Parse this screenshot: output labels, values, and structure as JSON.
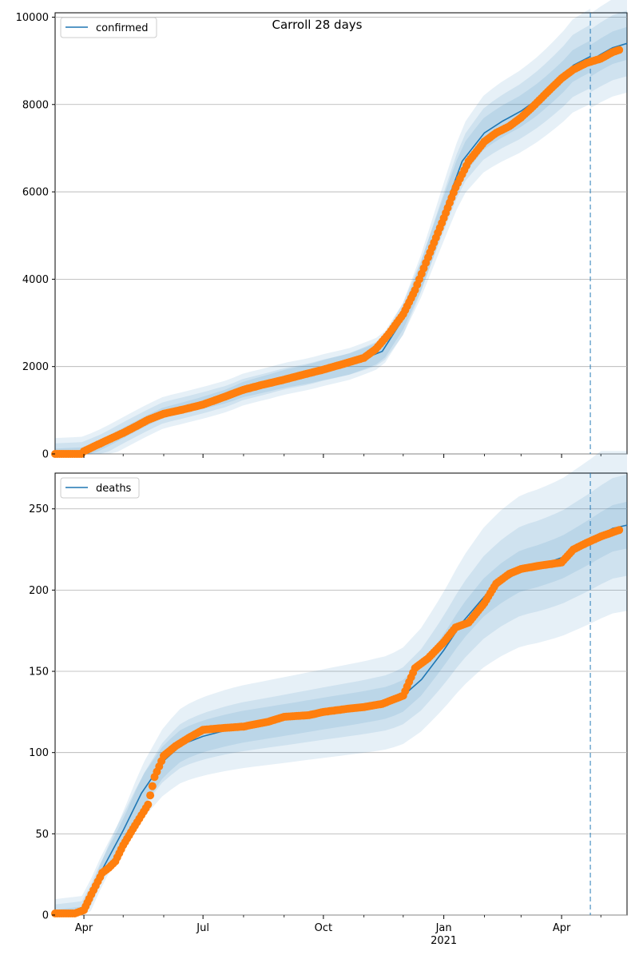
{
  "title": "Carroll 28 days",
  "colors": {
    "model_line": "#1f77b4",
    "observed": "#ff7f0e",
    "band": "#1f77b4",
    "grid": "#b0b0b0",
    "forecast_line": "#1f77b4"
  },
  "x_axis": {
    "start": "2020-03-10",
    "end": "2021-05-21",
    "major_ticks": [
      {
        "date": "2020-04-01",
        "label": "Apr",
        "sublabel": ""
      },
      {
        "date": "2020-07-01",
        "label": "Jul",
        "sublabel": ""
      },
      {
        "date": "2020-10-01",
        "label": "Oct",
        "sublabel": ""
      },
      {
        "date": "2021-01-01",
        "label": "Jan",
        "sublabel": "2021"
      },
      {
        "date": "2021-04-01",
        "label": "Apr",
        "sublabel": ""
      }
    ],
    "minor_ticks": [
      "2020-05-01",
      "2020-06-01",
      "2020-08-01",
      "2020-09-01",
      "2020-11-01",
      "2020-12-01",
      "2021-02-01",
      "2021-03-01",
      "2021-05-01"
    ],
    "forecast_start": "2021-04-23"
  },
  "chart_data": [
    {
      "type": "line",
      "legend": "confirmed",
      "legend_position": "upper-left",
      "grid": "horizontal",
      "ylim": [
        0,
        10100
      ],
      "yticks": [
        0,
        2000,
        4000,
        6000,
        8000,
        10000
      ],
      "model": {
        "x": [
          "2020-03-10",
          "2020-03-31",
          "2020-04-15",
          "2020-05-01",
          "2020-05-20",
          "2020-06-01",
          "2020-06-15",
          "2020-07-01",
          "2020-07-20",
          "2020-08-01",
          "2020-08-20",
          "2020-09-01",
          "2020-09-20",
          "2020-10-01",
          "2020-10-20",
          "2020-11-01",
          "2020-11-15",
          "2020-12-01",
          "2020-12-15",
          "2021-01-01",
          "2021-01-15",
          "2021-02-01",
          "2021-02-15",
          "2021-03-01",
          "2021-03-15",
          "2021-04-01",
          "2021-04-10",
          "2021-04-23"
        ],
        "y": [
          0,
          30,
          220,
          480,
          780,
          950,
          1050,
          1170,
          1330,
          1480,
          1620,
          1720,
          1830,
          1920,
          2050,
          2180,
          2350,
          3100,
          4100,
          5550,
          6700,
          7350,
          7620,
          7850,
          8150,
          8600,
          8900,
          9100
        ]
      },
      "forecast": {
        "x": [
          "2021-04-23",
          "2021-05-01",
          "2021-05-10",
          "2021-05-21"
        ],
        "y": [
          9000,
          9150,
          9300,
          9400
        ]
      },
      "band_scale": [
        0.04,
        0.08,
        0.12
      ],
      "observed": {
        "x": [
          "2020-03-10",
          "2020-03-20",
          "2020-03-30",
          "2020-04-01",
          "2020-04-10",
          "2020-04-20",
          "2020-05-01",
          "2020-05-10",
          "2020-05-20",
          "2020-06-01",
          "2020-06-15",
          "2020-07-01",
          "2020-07-15",
          "2020-08-01",
          "2020-08-15",
          "2020-09-01",
          "2020-09-15",
          "2020-10-01",
          "2020-10-15",
          "2020-11-01",
          "2020-11-10",
          "2020-11-20",
          "2020-12-01",
          "2020-12-10",
          "2020-12-20",
          "2021-01-01",
          "2021-01-10",
          "2021-01-20",
          "2021-02-01",
          "2021-02-10",
          "2021-02-20",
          "2021-03-01",
          "2021-03-10",
          "2021-03-20",
          "2021-04-01",
          "2021-04-10",
          "2021-04-20",
          "2021-05-01",
          "2021-05-10",
          "2021-05-15"
        ],
        "y": [
          0,
          0,
          0,
          60,
          190,
          330,
          480,
          620,
          780,
          920,
          1010,
          1130,
          1280,
          1470,
          1580,
          1700,
          1810,
          1930,
          2050,
          2200,
          2400,
          2750,
          3200,
          3750,
          4500,
          5400,
          6100,
          6700,
          7150,
          7350,
          7500,
          7700,
          7950,
          8250,
          8600,
          8800,
          8950,
          9050,
          9200,
          9250
        ]
      }
    },
    {
      "type": "line",
      "legend": "deaths",
      "legend_position": "upper-left",
      "grid": "horizontal",
      "ylim": [
        0,
        272
      ],
      "yticks": [
        0,
        50,
        100,
        150,
        200,
        250
      ],
      "model": {
        "x": [
          "2020-03-10",
          "2020-03-31",
          "2020-04-05",
          "2020-04-15",
          "2020-05-01",
          "2020-05-15",
          "2020-06-01",
          "2020-06-15",
          "2020-07-01",
          "2020-07-20",
          "2020-08-01",
          "2020-09-01",
          "2020-10-01",
          "2020-11-01",
          "2020-11-20",
          "2020-12-01",
          "2020-12-15",
          "2021-01-01",
          "2021-01-15",
          "2021-02-01",
          "2021-02-15",
          "2021-03-01",
          "2021-03-15",
          "2021-04-01",
          "2021-04-23"
        ],
        "y": [
          0,
          2,
          10,
          28,
          52,
          75,
          95,
          105,
          110,
          114,
          116,
          120,
          124,
          128,
          131,
          135,
          145,
          163,
          180,
          196,
          205,
          212,
          215,
          220,
          230
        ]
      },
      "forecast": {
        "x": [
          "2021-04-23",
          "2021-05-01",
          "2021-05-10",
          "2021-05-21"
        ],
        "y": [
          230,
          234,
          238,
          240
        ]
      },
      "band_scale": [
        0.06,
        0.13,
        0.22
      ],
      "observed": {
        "x": [
          "2020-03-10",
          "2020-03-25",
          "2020-04-01",
          "2020-04-05",
          "2020-04-10",
          "2020-04-15",
          "2020-04-20",
          "2020-04-25",
          "2020-05-01",
          "2020-05-10",
          "2020-05-20",
          "2020-05-25",
          "2020-06-01",
          "2020-06-10",
          "2020-06-20",
          "2020-07-01",
          "2020-07-15",
          "2020-08-01",
          "2020-08-20",
          "2020-09-01",
          "2020-09-20",
          "2020-10-01",
          "2020-10-20",
          "2020-11-01",
          "2020-11-15",
          "2020-12-01",
          "2020-12-10",
          "2020-12-20",
          "2021-01-01",
          "2021-01-10",
          "2021-01-20",
          "2021-02-01",
          "2021-02-10",
          "2021-02-20",
          "2021-03-01",
          "2021-03-15",
          "2021-04-01",
          "2021-04-10",
          "2021-04-20",
          "2021-05-01",
          "2021-05-15"
        ],
        "y": [
          1,
          1,
          3,
          10,
          18,
          26,
          29,
          33,
          43,
          55,
          68,
          85,
          98,
          104,
          109,
          114,
          115,
          116,
          119,
          122,
          123,
          125,
          127,
          128,
          130,
          135,
          152,
          158,
          168,
          177,
          180,
          192,
          204,
          210,
          213,
          215,
          217,
          225,
          229,
          233,
          237
        ]
      }
    }
  ]
}
